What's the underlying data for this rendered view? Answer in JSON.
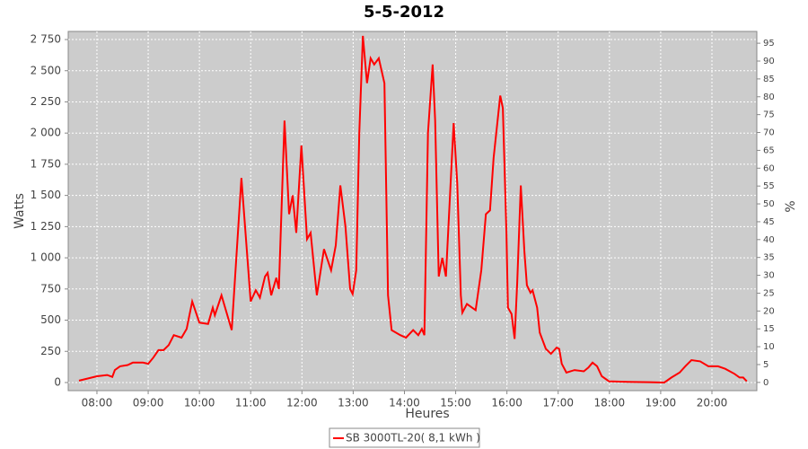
{
  "chart_data": {
    "type": "line",
    "title": "5-5-2012",
    "x_label": "Heures",
    "y_label": "Watts",
    "y2_label": "%",
    "x": [
      7.65,
      8.0,
      8.2,
      8.3,
      8.35,
      8.45,
      8.6,
      8.7,
      8.9,
      9.0,
      9.1,
      9.2,
      9.3,
      9.4,
      9.5,
      9.65,
      9.75,
      9.86,
      10.0,
      10.17,
      10.26,
      10.3,
      10.43,
      10.63,
      10.82,
      11.0,
      11.1,
      11.18,
      11.28,
      11.33,
      11.4,
      11.5,
      11.55,
      11.66,
      11.75,
      11.82,
      11.89,
      11.99,
      12.1,
      12.17,
      12.29,
      12.43,
      12.57,
      12.66,
      12.75,
      12.85,
      12.94,
      12.99,
      13.06,
      13.12,
      13.19,
      13.27,
      13.34,
      13.41,
      13.5,
      13.61,
      13.68,
      13.75,
      13.92,
      14.03,
      14.17,
      14.27,
      14.34,
      14.39,
      14.46,
      14.55,
      14.6,
      14.67,
      14.74,
      14.81,
      14.96,
      15.03,
      15.1,
      15.13,
      15.22,
      15.39,
      15.5,
      15.59,
      15.67,
      15.74,
      15.87,
      15.92,
      15.99,
      16.02,
      16.09,
      16.15,
      16.2,
      16.27,
      16.34,
      16.39,
      16.46,
      16.5,
      16.59,
      16.64,
      16.76,
      16.86,
      16.97,
      17.02,
      17.07,
      17.16,
      17.32,
      17.5,
      17.59,
      17.67,
      17.76,
      17.85,
      17.99,
      18.37,
      18.8,
      19.07,
      19.21,
      19.37,
      19.48,
      19.6,
      19.77,
      19.93,
      20.12,
      20.26,
      20.44,
      20.54,
      20.61,
      20.68
    ],
    "series": [
      {
        "name": "SB 3000TL-20( 8,1 kWh )",
        "color": "#ff0000",
        "values": [
          15,
          50,
          60,
          45,
          100,
          130,
          140,
          160,
          160,
          150,
          200,
          260,
          260,
          300,
          380,
          360,
          430,
          650,
          480,
          470,
          600,
          540,
          700,
          420,
          1640,
          650,
          740,
          680,
          850,
          880,
          700,
          840,
          750,
          2100,
          1350,
          1500,
          1200,
          1900,
          1150,
          1200,
          700,
          1070,
          900,
          1100,
          1580,
          1250,
          750,
          710,
          900,
          2000,
          2780,
          2400,
          2600,
          2550,
          2600,
          2400,
          700,
          420,
          380,
          360,
          420,
          380,
          430,
          380,
          2000,
          2550,
          2100,
          850,
          1000,
          850,
          2080,
          1600,
          700,
          560,
          630,
          580,
          900,
          1350,
          1380,
          1800,
          2300,
          2200,
          1200,
          600,
          550,
          350,
          800,
          1580,
          1050,
          780,
          720,
          740,
          600,
          400,
          270,
          230,
          280,
          270,
          150,
          80,
          100,
          90,
          120,
          160,
          130,
          50,
          10,
          5,
          3,
          0,
          40,
          80,
          130,
          180,
          170,
          130,
          130,
          110,
          70,
          40,
          40,
          10
        ]
      }
    ],
    "xlim": [
      7.44,
      20.876
    ],
    "xticks": [
      {
        "value": 8,
        "label": "08:00"
      },
      {
        "value": 9,
        "label": "09:00"
      },
      {
        "value": 10,
        "label": "10:00"
      },
      {
        "value": 11,
        "label": "11:00"
      },
      {
        "value": 12,
        "label": "12:00"
      },
      {
        "value": 13,
        "label": "13:00"
      },
      {
        "value": 14,
        "label": "14:00"
      },
      {
        "value": 15,
        "label": "15:00"
      },
      {
        "value": 16,
        "label": "16:00"
      },
      {
        "value": 17,
        "label": "17:00"
      },
      {
        "value": 18,
        "label": "18:00"
      },
      {
        "value": 19,
        "label": "19:00"
      },
      {
        "value": 20,
        "label": "20:00"
      }
    ],
    "ylim": [
      -65,
      2815
    ],
    "yticks": [
      0,
      250,
      500,
      750,
      {
        "value": 1000,
        "label": "1 000"
      },
      {
        "value": 1250,
        "label": "1 250"
      },
      {
        "value": 1500,
        "label": "1 500"
      },
      {
        "value": 1750,
        "label": "1 750"
      },
      {
        "value": 2000,
        "label": "2 000"
      },
      {
        "value": 2250,
        "label": "2 250"
      },
      {
        "value": 2500,
        "label": "2 500"
      },
      {
        "value": 2750,
        "label": "2 750"
      }
    ],
    "y2lim": [
      -2.3,
      98.3
    ],
    "y2ticks": [
      0,
      5,
      10,
      15,
      20,
      25,
      30,
      35,
      40,
      45,
      50,
      55,
      60,
      65,
      70,
      75,
      80,
      85,
      90,
      95
    ],
    "grid": true,
    "legend": "bottom"
  }
}
